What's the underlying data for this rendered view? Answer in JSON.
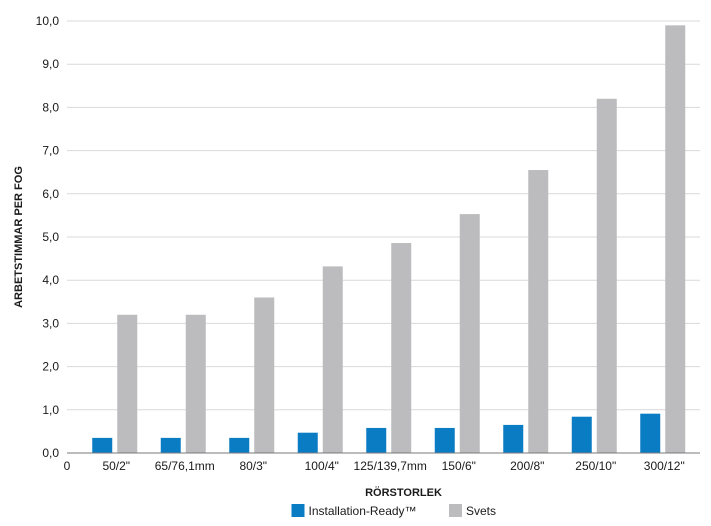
{
  "chart_data": {
    "type": "bar",
    "title": "",
    "xlabel": "RÖRSTORLEK",
    "ylabel": "ARBETSTIMMAR PER FOG",
    "origin_label": "0",
    "categories": [
      "50/2\"",
      "65/76,1mm",
      "80/3\"",
      "100/4\"",
      "125/139,7mm",
      "150/6\"",
      "200/8\"",
      "250/10\"",
      "300/12\""
    ],
    "series": [
      {
        "name": "Installation-Ready™",
        "color": "#0a7cc4",
        "values": [
          0.35,
          0.35,
          0.35,
          0.47,
          0.58,
          0.58,
          0.65,
          0.84,
          0.91
        ]
      },
      {
        "name": "Svets",
        "color": "#bcbcbe",
        "values": [
          3.2,
          3.2,
          3.6,
          4.32,
          4.86,
          5.53,
          6.55,
          8.2,
          9.9
        ]
      }
    ],
    "ylim": [
      0,
      10
    ],
    "yticks": [
      "0,0",
      "1,0",
      "2,0",
      "3,0",
      "4,0",
      "5,0",
      "6,0",
      "7,0",
      "8,0",
      "9,0",
      "10,0"
    ],
    "grid": true,
    "legend_position": "bottom-center"
  }
}
